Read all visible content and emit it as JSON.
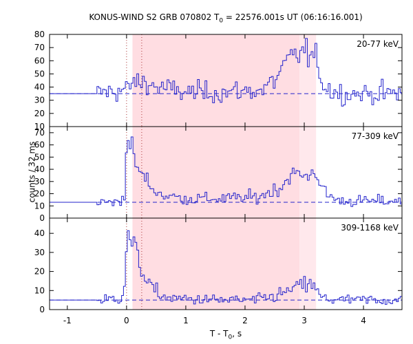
{
  "figure": {
    "title_prefix": "KONUS-WIND S2 GRB 070802 T",
    "title_sub": "0",
    "title_suffix": " = 22576.001s UT (06:16:16.001)",
    "ylabel": "counts / 32 ms",
    "xlabel_prefix": "T - T",
    "xlabel_sub": "0",
    "xlabel_suffix": ", s"
  },
  "chart_data": [
    {
      "type": "line",
      "name": "20-77 keV",
      "x_range": [
        -1.3,
        4.65
      ],
      "ylim": [
        10,
        80
      ],
      "yticks": [
        10,
        20,
        30,
        40,
        50,
        60,
        70,
        80
      ],
      "background_level": 35,
      "profile_keypoints": [
        [
          -1.3,
          35
        ],
        [
          -0.5,
          35
        ],
        [
          -0.4,
          36
        ],
        [
          0.0,
          38
        ],
        [
          0.1,
          43
        ],
        [
          0.3,
          44
        ],
        [
          0.5,
          40
        ],
        [
          1.0,
          36
        ],
        [
          1.6,
          36
        ],
        [
          2.0,
          37
        ],
        [
          2.3,
          38
        ],
        [
          2.5,
          45
        ],
        [
          2.7,
          58
        ],
        [
          2.85,
          64
        ],
        [
          3.0,
          67
        ],
        [
          3.2,
          60
        ],
        [
          3.35,
          40
        ],
        [
          3.6,
          35
        ],
        [
          4.65,
          35
        ]
      ],
      "color": "#2222cc"
    },
    {
      "type": "line",
      "name": "77-309 keV",
      "x_range": [
        -1.3,
        4.65
      ],
      "ylim": [
        0,
        75
      ],
      "yticks": [
        0,
        10,
        20,
        30,
        40,
        50,
        60,
        70
      ],
      "background_level": 13,
      "profile_keypoints": [
        [
          -1.3,
          13
        ],
        [
          -0.1,
          13
        ],
        [
          -0.02,
          25
        ],
        [
          0.0,
          58
        ],
        [
          0.05,
          65
        ],
        [
          0.15,
          45
        ],
        [
          0.25,
          36
        ],
        [
          0.35,
          30
        ],
        [
          0.45,
          24
        ],
        [
          0.6,
          19
        ],
        [
          1.0,
          16
        ],
        [
          1.6,
          16
        ],
        [
          2.2,
          17
        ],
        [
          2.6,
          25
        ],
        [
          2.8,
          37
        ],
        [
          3.0,
          34
        ],
        [
          3.2,
          38
        ],
        [
          3.35,
          20
        ],
        [
          3.6,
          14
        ],
        [
          4.65,
          14
        ]
      ],
      "color": "#2222cc"
    },
    {
      "type": "line",
      "name": "309-1168 keV",
      "x_range": [
        -1.3,
        4.65
      ],
      "ylim": [
        0,
        48
      ],
      "yticks": [
        0,
        10,
        20,
        30,
        40
      ],
      "background_level": 5,
      "profile_keypoints": [
        [
          -1.3,
          5
        ],
        [
          -0.4,
          5
        ],
        [
          -0.1,
          6
        ],
        [
          -0.02,
          15
        ],
        [
          0.0,
          38
        ],
        [
          0.1,
          35
        ],
        [
          0.2,
          26
        ],
        [
          0.3,
          18
        ],
        [
          0.45,
          10
        ],
        [
          0.7,
          6
        ],
        [
          1.5,
          5
        ],
        [
          2.2,
          5
        ],
        [
          2.6,
          8
        ],
        [
          2.9,
          12
        ],
        [
          3.1,
          14
        ],
        [
          3.3,
          6
        ],
        [
          3.6,
          5
        ],
        [
          4.65,
          5
        ]
      ],
      "color": "#2222cc"
    }
  ],
  "xaxis": {
    "ticks": [
      -1,
      0,
      1,
      2,
      3,
      4
    ],
    "tick_labels": [
      "-1",
      "0",
      "1",
      "2",
      "3",
      "4"
    ]
  },
  "shaded_region": {
    "x_start": 0.1,
    "x_end": 3.2,
    "inner_x_end": 2.92,
    "color": "#ffdde2"
  },
  "marker_lines": [
    0.0,
    0.256
  ]
}
